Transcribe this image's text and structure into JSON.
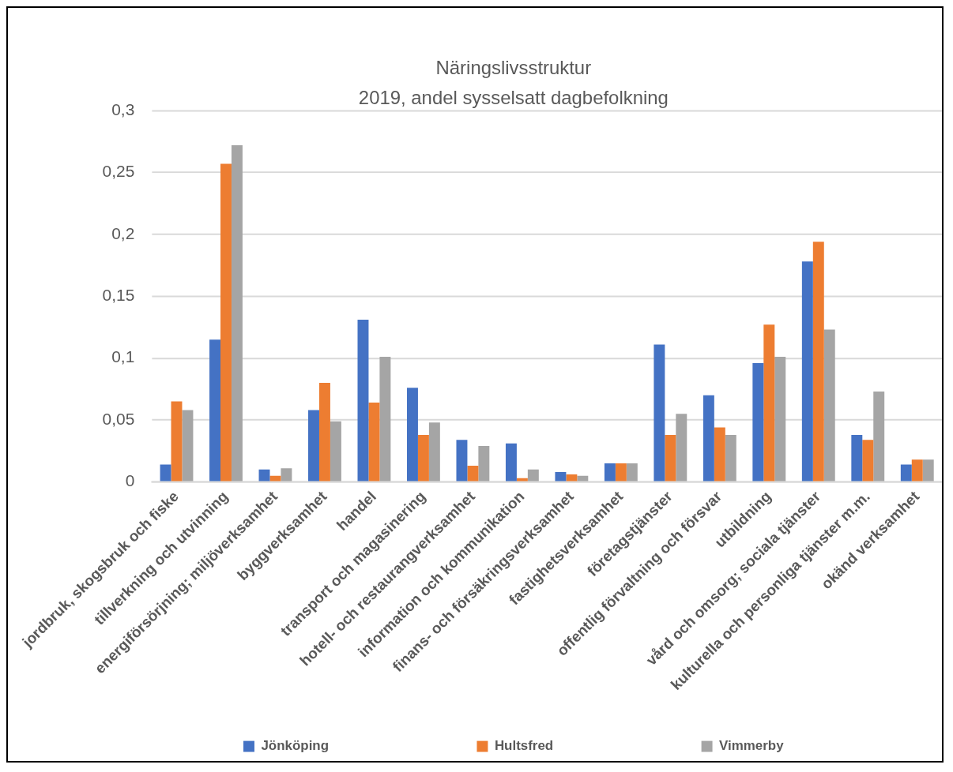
{
  "chart_data": {
    "type": "bar",
    "title": "Näringslivsstruktur",
    "subtitle": "2019, andel sysselsatt dagbefolkning",
    "categories": [
      "jordbruk, skogsbruk och fiske",
      "tillverkning och utvinning",
      "energiförsörjning; miljöverksamhet",
      "byggverksamhet",
      "handel",
      "transport och magasinering",
      "hotell- och restaurangverksamhet",
      "information och kommunikation",
      "finans- och försäkringsverksamhet",
      "fastighetsverksamhet",
      "företagstjänster",
      "offentlig förvaltning och försvar",
      "utbildning",
      "vård och omsorg; sociala tjänster",
      "kulturella och personliga tjänster m.m.",
      "okänd verksamhet"
    ],
    "series": [
      {
        "name": "Jönköping",
        "color": "#4472c4",
        "values": [
          0.014,
          0.115,
          0.01,
          0.058,
          0.131,
          0.076,
          0.034,
          0.031,
          0.008,
          0.015,
          0.111,
          0.07,
          0.096,
          0.178,
          0.038,
          0.014
        ]
      },
      {
        "name": "Hultsfred",
        "color": "#ed7d31",
        "values": [
          0.065,
          0.257,
          0.005,
          0.08,
          0.064,
          0.038,
          0.013,
          0.003,
          0.006,
          0.015,
          0.038,
          0.044,
          0.127,
          0.194,
          0.034,
          0.018
        ]
      },
      {
        "name": "Vimmerby",
        "color": "#a5a5a5",
        "values": [
          0.058,
          0.272,
          0.011,
          0.049,
          0.101,
          0.048,
          0.029,
          0.01,
          0.005,
          0.015,
          0.055,
          0.038,
          0.101,
          0.123,
          0.073,
          0.018
        ]
      }
    ],
    "ylim": [
      0,
      0.3
    ],
    "yticks": [
      0,
      {
        "value": 0.05,
        "label": "0,05"
      },
      {
        "value": 0.1,
        "label": "0,1"
      },
      {
        "value": 0.15,
        "label": "0,15"
      },
      {
        "value": 0.2,
        "label": "0,2"
      },
      {
        "value": 0.25,
        "label": "0,25"
      },
      {
        "value": 0.3,
        "label": "0,3"
      }
    ],
    "grid": "y",
    "legend": "bottom"
  }
}
